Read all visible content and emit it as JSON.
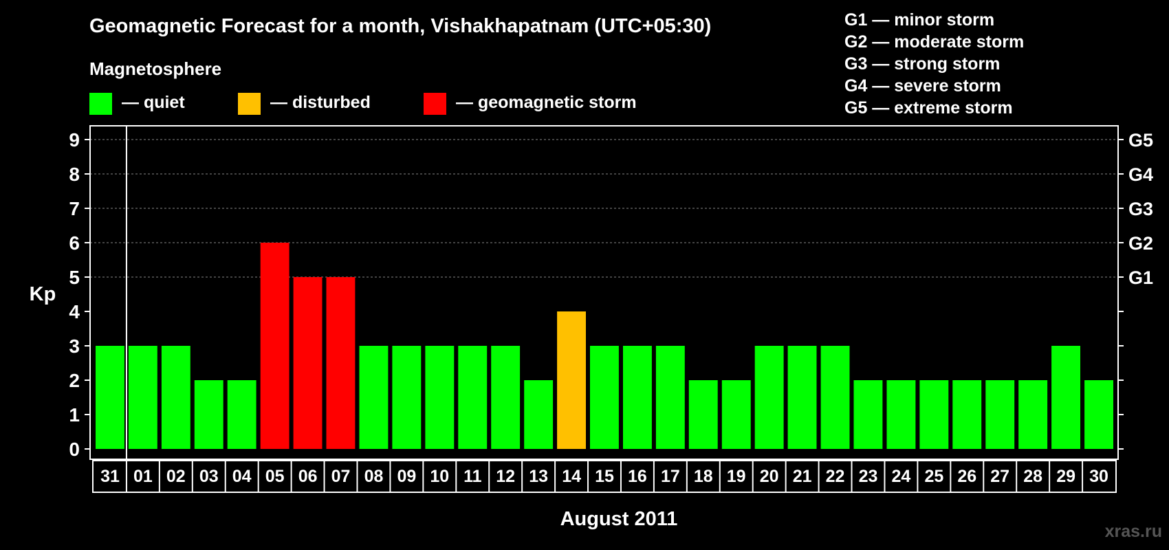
{
  "header": {
    "title": "Geomagnetic Forecast for a month, Vishakhapatnam (UTC+05:30)",
    "subtitle": "Magnetosphere"
  },
  "legend": [
    {
      "label": "— quiet",
      "color": "#00ff00"
    },
    {
      "label": "— disturbed",
      "color": "#ffc000"
    },
    {
      "label": "— geomagnetic storm",
      "color": "#ff0000"
    }
  ],
  "storm_scale": [
    "G1 — minor storm",
    "G2 — moderate storm",
    "G3 — strong storm",
    "G4 — severe storm",
    "G5 — extreme storm"
  ],
  "watermark": "xras.ru",
  "colors": {
    "quiet": "#00ff00",
    "disturbed": "#ffc000",
    "storm": "#ff0000",
    "background": "#000000",
    "axis": "#ffffff",
    "grid": "#888888"
  },
  "chart_data": {
    "type": "bar",
    "title": "Geomagnetic Forecast for a month, Vishakhapatnam (UTC+05:30)",
    "xlabel": "August 2011",
    "ylabel": "Kp",
    "ylim": [
      0,
      9
    ],
    "yticks": [
      0,
      1,
      2,
      3,
      4,
      5,
      6,
      7,
      8,
      9
    ],
    "grid": true,
    "right_axis_labels": [
      {
        "value": 5,
        "label": "G1"
      },
      {
        "value": 6,
        "label": "G2"
      },
      {
        "value": 7,
        "label": "G3"
      },
      {
        "value": 8,
        "label": "G4"
      },
      {
        "value": 9,
        "label": "G5"
      }
    ],
    "categories": [
      "31",
      "01",
      "02",
      "03",
      "04",
      "05",
      "06",
      "07",
      "08",
      "09",
      "10",
      "11",
      "12",
      "13",
      "14",
      "15",
      "16",
      "17",
      "18",
      "19",
      "20",
      "21",
      "22",
      "23",
      "24",
      "25",
      "26",
      "27",
      "28",
      "29",
      "30"
    ],
    "values": [
      3,
      3,
      3,
      2,
      2,
      6,
      5,
      5,
      3,
      3,
      3,
      3,
      3,
      2,
      4,
      3,
      3,
      3,
      2,
      2,
      3,
      3,
      3,
      2,
      2,
      2,
      2,
      2,
      2,
      3,
      2
    ],
    "status": [
      "quiet",
      "quiet",
      "quiet",
      "quiet",
      "quiet",
      "storm",
      "storm",
      "storm",
      "quiet",
      "quiet",
      "quiet",
      "quiet",
      "quiet",
      "quiet",
      "disturbed",
      "quiet",
      "quiet",
      "quiet",
      "quiet",
      "quiet",
      "quiet",
      "quiet",
      "quiet",
      "quiet",
      "quiet",
      "quiet",
      "quiet",
      "quiet",
      "quiet",
      "quiet",
      "quiet"
    ]
  }
}
